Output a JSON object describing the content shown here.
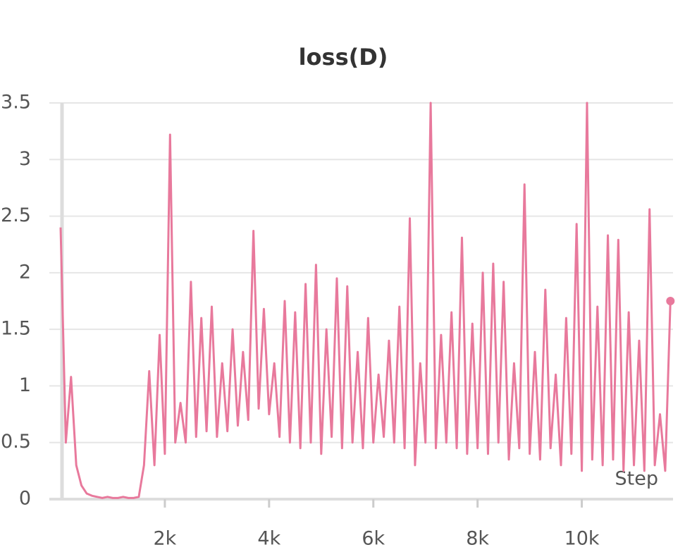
{
  "chart_data": {
    "type": "line",
    "title": "loss(D)",
    "x_label": "Step",
    "x": [
      0,
      100,
      200,
      300,
      400,
      500,
      600,
      700,
      800,
      900,
      1000,
      1100,
      1200,
      1300,
      1400,
      1500,
      1600,
      1700,
      1800,
      1900,
      2000,
      2100,
      2200,
      2300,
      2400,
      2500,
      2600,
      2700,
      2800,
      2900,
      3000,
      3100,
      3200,
      3300,
      3400,
      3500,
      3600,
      3700,
      3800,
      3900,
      4000,
      4100,
      4200,
      4300,
      4400,
      4500,
      4600,
      4700,
      4800,
      4900,
      5000,
      5100,
      5200,
      5300,
      5400,
      5500,
      5600,
      5700,
      5800,
      5900,
      6000,
      6100,
      6200,
      6300,
      6400,
      6500,
      6600,
      6700,
      6800,
      6900,
      7000,
      7100,
      7200,
      7300,
      7400,
      7500,
      7600,
      7700,
      7800,
      7900,
      8000,
      8100,
      8200,
      8300,
      8400,
      8500,
      8600,
      8700,
      8800,
      8900,
      9000,
      9100,
      9200,
      9300,
      9400,
      9500,
      9600,
      9700,
      9800,
      9900,
      10000,
      10100,
      10200,
      10300,
      10400,
      10500,
      10600,
      10700,
      10800,
      10900,
      11000,
      11100,
      11200,
      11300,
      11400,
      11500,
      11600,
      11700
    ],
    "series": [
      {
        "name": "loss(D)",
        "color": "#e8799c",
        "values": [
          2.4,
          0.5,
          1.08,
          0.3,
          0.12,
          0.05,
          0.03,
          0.02,
          0.01,
          0.02,
          0.01,
          0.01,
          0.02,
          0.01,
          0.01,
          0.02,
          0.3,
          1.13,
          0.3,
          1.45,
          0.4,
          3.22,
          0.5,
          0.85,
          0.5,
          1.92,
          0.55,
          1.6,
          0.6,
          1.7,
          0.55,
          1.2,
          0.6,
          1.5,
          0.65,
          1.3,
          0.7,
          2.37,
          0.8,
          1.68,
          0.75,
          1.2,
          0.55,
          1.75,
          0.5,
          1.65,
          0.45,
          1.9,
          0.5,
          2.07,
          0.4,
          1.5,
          0.55,
          1.95,
          0.45,
          1.88,
          0.5,
          1.3,
          0.45,
          1.6,
          0.5,
          1.1,
          0.55,
          1.4,
          0.5,
          1.7,
          0.45,
          2.48,
          0.3,
          1.2,
          0.5,
          3.5,
          0.45,
          1.45,
          0.5,
          1.65,
          0.45,
          2.31,
          0.4,
          1.55,
          0.45,
          2.0,
          0.4,
          2.08,
          0.5,
          1.92,
          0.35,
          1.2,
          0.45,
          2.78,
          0.4,
          1.3,
          0.35,
          1.85,
          0.45,
          1.1,
          0.3,
          1.6,
          0.4,
          2.43,
          0.25,
          3.5,
          0.35,
          1.7,
          0.3,
          2.33,
          0.35,
          2.29,
          0.25,
          1.65,
          0.3,
          1.4,
          0.25,
          2.56,
          0.3,
          0.75,
          0.25,
          1.75
        ]
      }
    ],
    "xlim": [
      0,
      11750
    ],
    "ylim": [
      0,
      3.5
    ],
    "xticks": [
      {
        "value": 2000,
        "label": "2k"
      },
      {
        "value": 4000,
        "label": "4k"
      },
      {
        "value": 6000,
        "label": "6k"
      },
      {
        "value": 8000,
        "label": "8k"
      },
      {
        "value": 10000,
        "label": "10k"
      }
    ],
    "yticks": [
      0,
      0.5,
      1,
      1.5,
      2,
      2.5,
      3,
      3.5
    ],
    "grid": true
  }
}
